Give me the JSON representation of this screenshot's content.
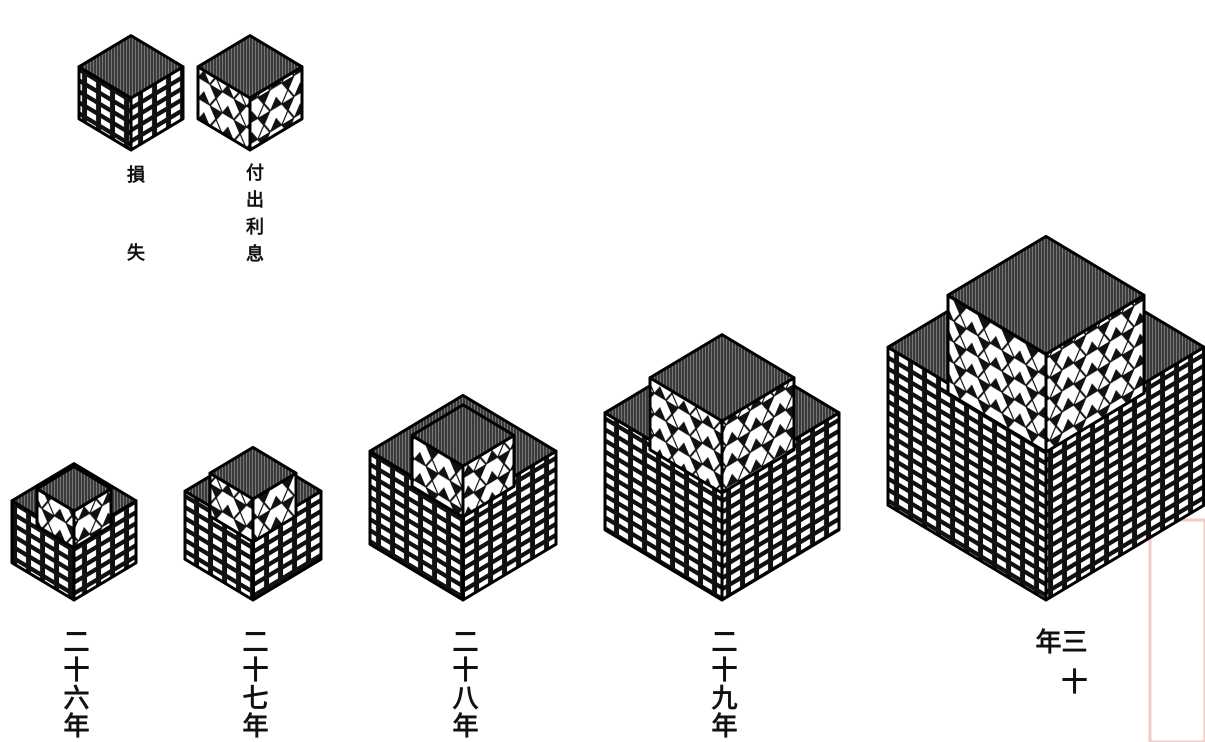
{
  "legend": [
    {
      "label": "損失"
    },
    {
      "label": "付出利息"
    }
  ],
  "years": [
    "二十六年",
    "二十七年",
    "二十八年",
    "二十九年",
    "三十年"
  ]
}
